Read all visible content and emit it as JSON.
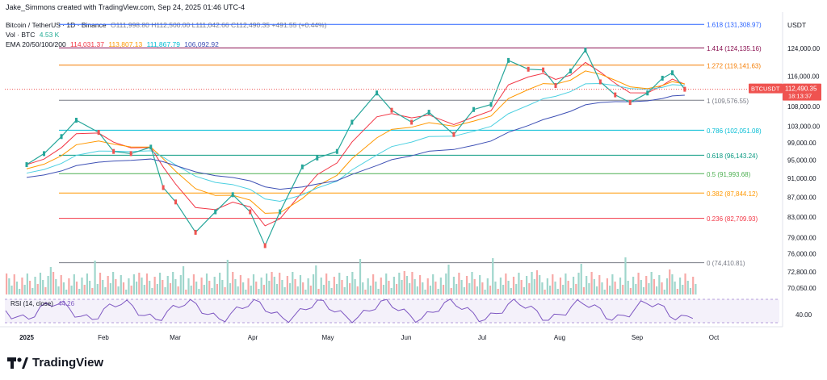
{
  "header": {
    "credit": "Jake_Simmons created with TradingView.com, Sep 24, 2025 01:46 UTC-4",
    "symbol_line": "Bitcoin / TetherUS · 1D · Binance",
    "ohlc": "O111,998.80 H112,500.00 L111,042.66 C112,490.35 +491.55 (+0.44%)",
    "vol_label": "Vol · BTC",
    "vol_value": "4.53 K",
    "ema_label": "EMA 20/50/100/200",
    "ema_values": [
      "114,031.37",
      "113,807.13",
      "111,867.79",
      "106,092.92"
    ],
    "rsi_label": "RSI (14, close)",
    "rsi_value": "44.26"
  },
  "price_axis": {
    "currency": "USDT",
    "labels": [
      "124,000.00",
      "116,000.00",
      "108,000.00",
      "103,000.00",
      "99,000.00",
      "95,000.00",
      "91,000.00",
      "87,000.00",
      "83,000.00",
      "79,000.00",
      "76,000.00",
      "72,800.00",
      "70,050.00"
    ],
    "ticker": "BTCUSDT",
    "last_price": "112,490.35",
    "countdown": "18:13:37",
    "rsi_tick": "40.00"
  },
  "time_axis": {
    "labels": [
      "2025",
      "Feb",
      "Mar",
      "Apr",
      "May",
      "Jun",
      "Jul",
      "Aug",
      "Sep",
      "Oct"
    ]
  },
  "chart_data": {
    "type": "line",
    "title": "Bitcoin / TetherUS · 1D · Binance",
    "fib_levels": [
      {
        "label": "1.618 (131,308.97)",
        "price": 131308.97,
        "color": "#2962ff"
      },
      {
        "label": "1.414 (124,135.16)",
        "price": 124135.16,
        "color": "#880e4f"
      },
      {
        "label": "1.272 (119,141.63)",
        "price": 119141.63,
        "color": "#f57c00"
      },
      {
        "label": "1 (109,576.55)",
        "price": 109576.55,
        "color": "#787b86"
      },
      {
        "label": "0.786 (102,051.08)",
        "price": 102051.08,
        "color": "#00bcd4"
      },
      {
        "label": "0.618 (96,143.24)",
        "price": 96143.24,
        "color": "#089981"
      },
      {
        "label": "0.5 (91,993.68)",
        "price": 91993.68,
        "color": "#4caf50"
      },
      {
        "label": "0.382 (87,844.12)",
        "price": 87844.12,
        "color": "#ff9800"
      },
      {
        "label": "0.236 (82,709.93)",
        "price": 82709.93,
        "color": "#f23645"
      },
      {
        "label": "0 (74,410.81)",
        "price": 74410.81,
        "color": "#787b86"
      }
    ],
    "price_series": {
      "months": [
        "Jan",
        "Feb",
        "Mar",
        "Apr",
        "May",
        "Jun",
        "Jul",
        "Aug",
        "Sep"
      ],
      "close_monthly_approx": [
        94500,
        102000,
        84000,
        82500,
        104000,
        105500,
        107500,
        117000,
        111500
      ],
      "x": [
        "2025-01-01",
        "2025-01-08",
        "2025-01-15",
        "2025-01-21",
        "2025-01-30",
        "2025-02-05",
        "2025-02-12",
        "2025-02-20",
        "2025-02-25",
        "2025-03-02",
        "2025-03-10",
        "2025-03-18",
        "2025-03-25",
        "2025-04-01",
        "2025-04-07",
        "2025-04-13",
        "2025-04-22",
        "2025-04-28",
        "2025-05-06",
        "2025-05-12",
        "2025-05-22",
        "2025-05-28",
        "2025-06-05",
        "2025-06-12",
        "2025-06-22",
        "2025-06-30",
        "2025-07-07",
        "2025-07-14",
        "2025-07-22",
        "2025-07-28",
        "2025-08-02",
        "2025-08-08",
        "2025-08-14",
        "2025-08-20",
        "2025-08-26",
        "2025-09-01",
        "2025-09-08",
        "2025-09-14",
        "2025-09-18",
        "2025-09-23"
      ],
      "y": [
        94000,
        96500,
        100500,
        104500,
        101500,
        97000,
        96500,
        98000,
        89000,
        86000,
        80000,
        84000,
        87500,
        84000,
        77500,
        84000,
        93500,
        95500,
        97000,
        104000,
        111500,
        107000,
        104000,
        106500,
        101000,
        107200,
        108500,
        120500,
        118000,
        117800,
        113500,
        117500,
        123500,
        114500,
        111000,
        109000,
        111500,
        115500,
        117000,
        112500
      ]
    },
    "ema": [
      {
        "name": "EMA 20",
        "color": "#f23645",
        "value": 114031.37
      },
      {
        "name": "EMA 50",
        "color": "#ff9800",
        "value": 113807.13
      },
      {
        "name": "EMA 100",
        "color": "#4dd0e1",
        "value": 111867.79
      },
      {
        "name": "EMA 200",
        "color": "#3f51b5",
        "value": 106092.92
      }
    ],
    "volume_color_up": "#9fd6cc",
    "volume_color_down": "#f7a9a7",
    "rsi_band": [
      30,
      70
    ],
    "legend": "top-left"
  }
}
